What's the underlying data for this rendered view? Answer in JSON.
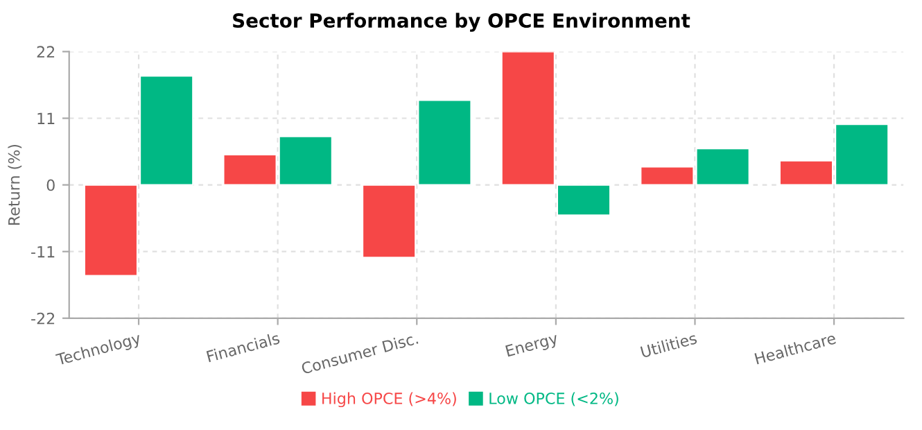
{
  "chart_data": {
    "type": "bar",
    "title": "Sector Performance by OPCE Environment",
    "ylabel": "Return (%)",
    "categories": [
      "Technology",
      "Financials",
      "Consumer Disc.",
      "Energy",
      "Utilities",
      "Healthcare"
    ],
    "series": [
      {
        "name": "High OPCE (>4%)",
        "color": "#f64747",
        "values": [
          -15,
          5,
          -12,
          22,
          3,
          4
        ]
      },
      {
        "name": "Low OPCE (<2%)",
        "color": "#00b884",
        "values": [
          18,
          8,
          14,
          -5,
          6,
          10
        ]
      }
    ],
    "ylim": [
      -22,
      22
    ],
    "yticks": [
      -22,
      -11,
      0,
      11,
      22
    ],
    "grid": true,
    "legend": "bottom"
  }
}
